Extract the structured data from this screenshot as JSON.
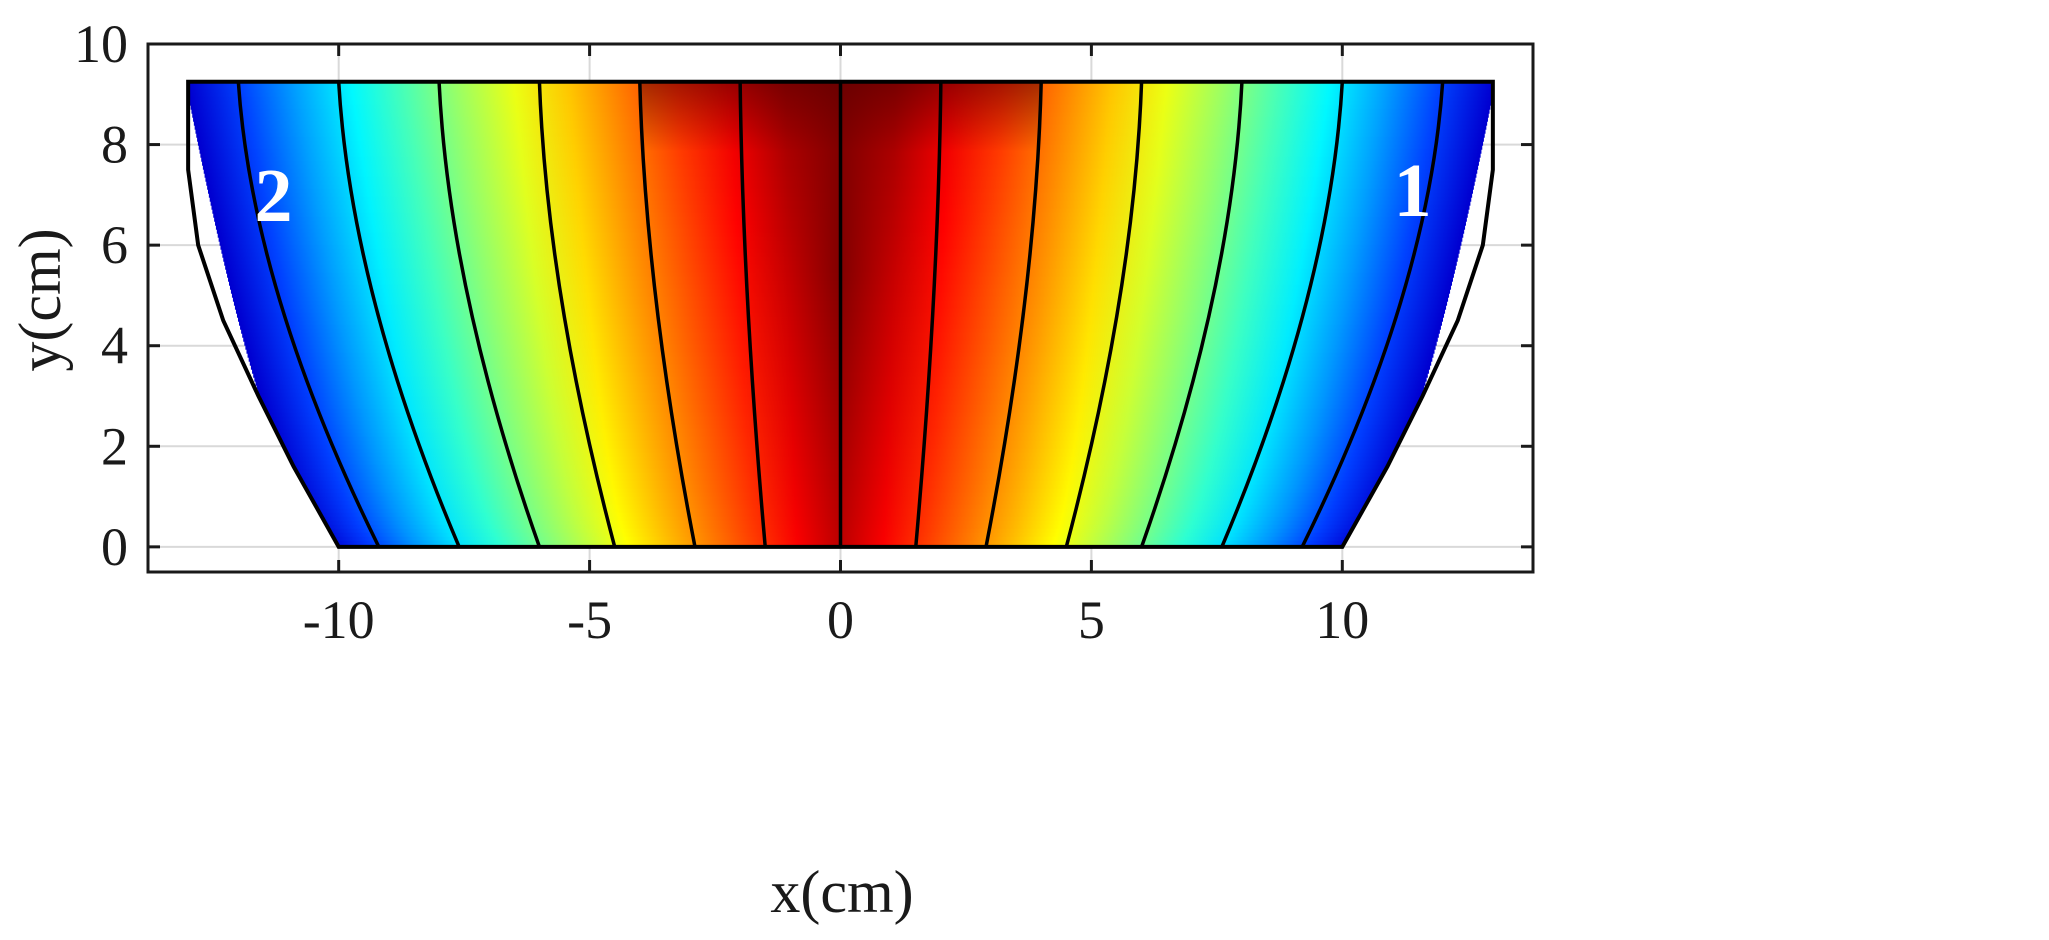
{
  "chart_data": {
    "type": "heatmap",
    "title": "",
    "xlabel": "x(cm)",
    "ylabel": "y(cm)",
    "xlim": [
      -13.8,
      13.8
    ],
    "ylim": [
      -0.5,
      10
    ],
    "x_ticks": [
      -10,
      -5,
      0,
      5,
      10
    ],
    "x_tick_labels": [
      "-10",
      "-5",
      "0",
      "5",
      "10"
    ],
    "y_ticks": [
      0,
      2,
      4,
      6,
      8,
      10
    ],
    "y_tick_labels": [
      "0",
      "2",
      "4",
      "6",
      "8",
      "10"
    ],
    "grid": true,
    "colormap": "jet",
    "colormap_colors": [
      "#00007f",
      "#0000ff",
      "#00ffff",
      "#00ff7f",
      "#ffff00",
      "#ff7f00",
      "#ff0000",
      "#7f0000"
    ],
    "domain": {
      "top_y": 9.25,
      "bottom_y": 0,
      "top_half_width": 13,
      "bottom_half_width": 10,
      "left_boundary": [
        [
          -13,
          9.25
        ],
        [
          -13,
          7.5
        ],
        [
          -12.8,
          6
        ],
        [
          -12.3,
          4.5
        ],
        [
          -11.6,
          3
        ],
        [
          -10.9,
          1.6
        ],
        [
          -10,
          0
        ]
      ],
      "right_boundary": [
        [
          13,
          9.25
        ],
        [
          13,
          7.5
        ],
        [
          12.8,
          6
        ],
        [
          12.3,
          4.5
        ],
        [
          11.6,
          3
        ],
        [
          10.9,
          1.6
        ],
        [
          10,
          0
        ]
      ]
    },
    "field_lines": [
      {
        "top_x": -12,
        "bottom_x": -9.2
      },
      {
        "top_x": -10,
        "bottom_x": -7.6
      },
      {
        "top_x": -8,
        "bottom_x": -6
      },
      {
        "top_x": -6,
        "bottom_x": -4.5
      },
      {
        "top_x": -4,
        "bottom_x": -2.9
      },
      {
        "top_x": -2,
        "bottom_x": -1.5
      },
      {
        "top_x": 0,
        "bottom_x": 0
      },
      {
        "top_x": 2,
        "bottom_x": 1.5
      },
      {
        "top_x": 4,
        "bottom_x": 2.9
      },
      {
        "top_x": 6,
        "bottom_x": 4.5
      },
      {
        "top_x": 8,
        "bottom_x": 6
      },
      {
        "top_x": 10,
        "bottom_x": 7.6
      },
      {
        "top_x": 12,
        "bottom_x": 9.2
      }
    ],
    "annotations": [
      {
        "text": "2",
        "x": -11.3,
        "y": 7
      },
      {
        "text": "1",
        "x": 11.4,
        "y": 7.1
      }
    ],
    "colors": {
      "axis": "#1a1a1a",
      "grid": "#d9d9d9",
      "field_line": "#000000",
      "boundary": "#000000",
      "annotation": "#ffffff"
    }
  }
}
